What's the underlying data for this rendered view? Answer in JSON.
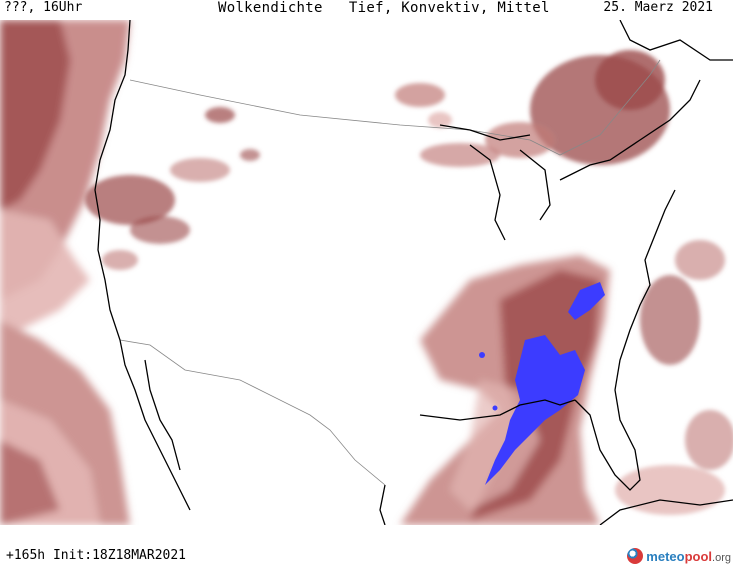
{
  "header": {
    "location_time": "???, 16Uhr",
    "title": "Wolkendichte   Tief, Konvektiv, Mittel",
    "date": "25. Maerz 2021"
  },
  "footer": {
    "forecast": "+165h  Init:18Z18MAR2021"
  },
  "logo": {
    "name_part1": "meteo",
    "name_part2": "pool",
    "tld": ".org"
  },
  "colors": {
    "cloud_dark": "#9b4a4a",
    "cloud_mid": "#c07a78",
    "cloud_light": "#e3b6b4",
    "convective": "#3c3cff",
    "coastline": "#000000",
    "borders": "#888888"
  }
}
